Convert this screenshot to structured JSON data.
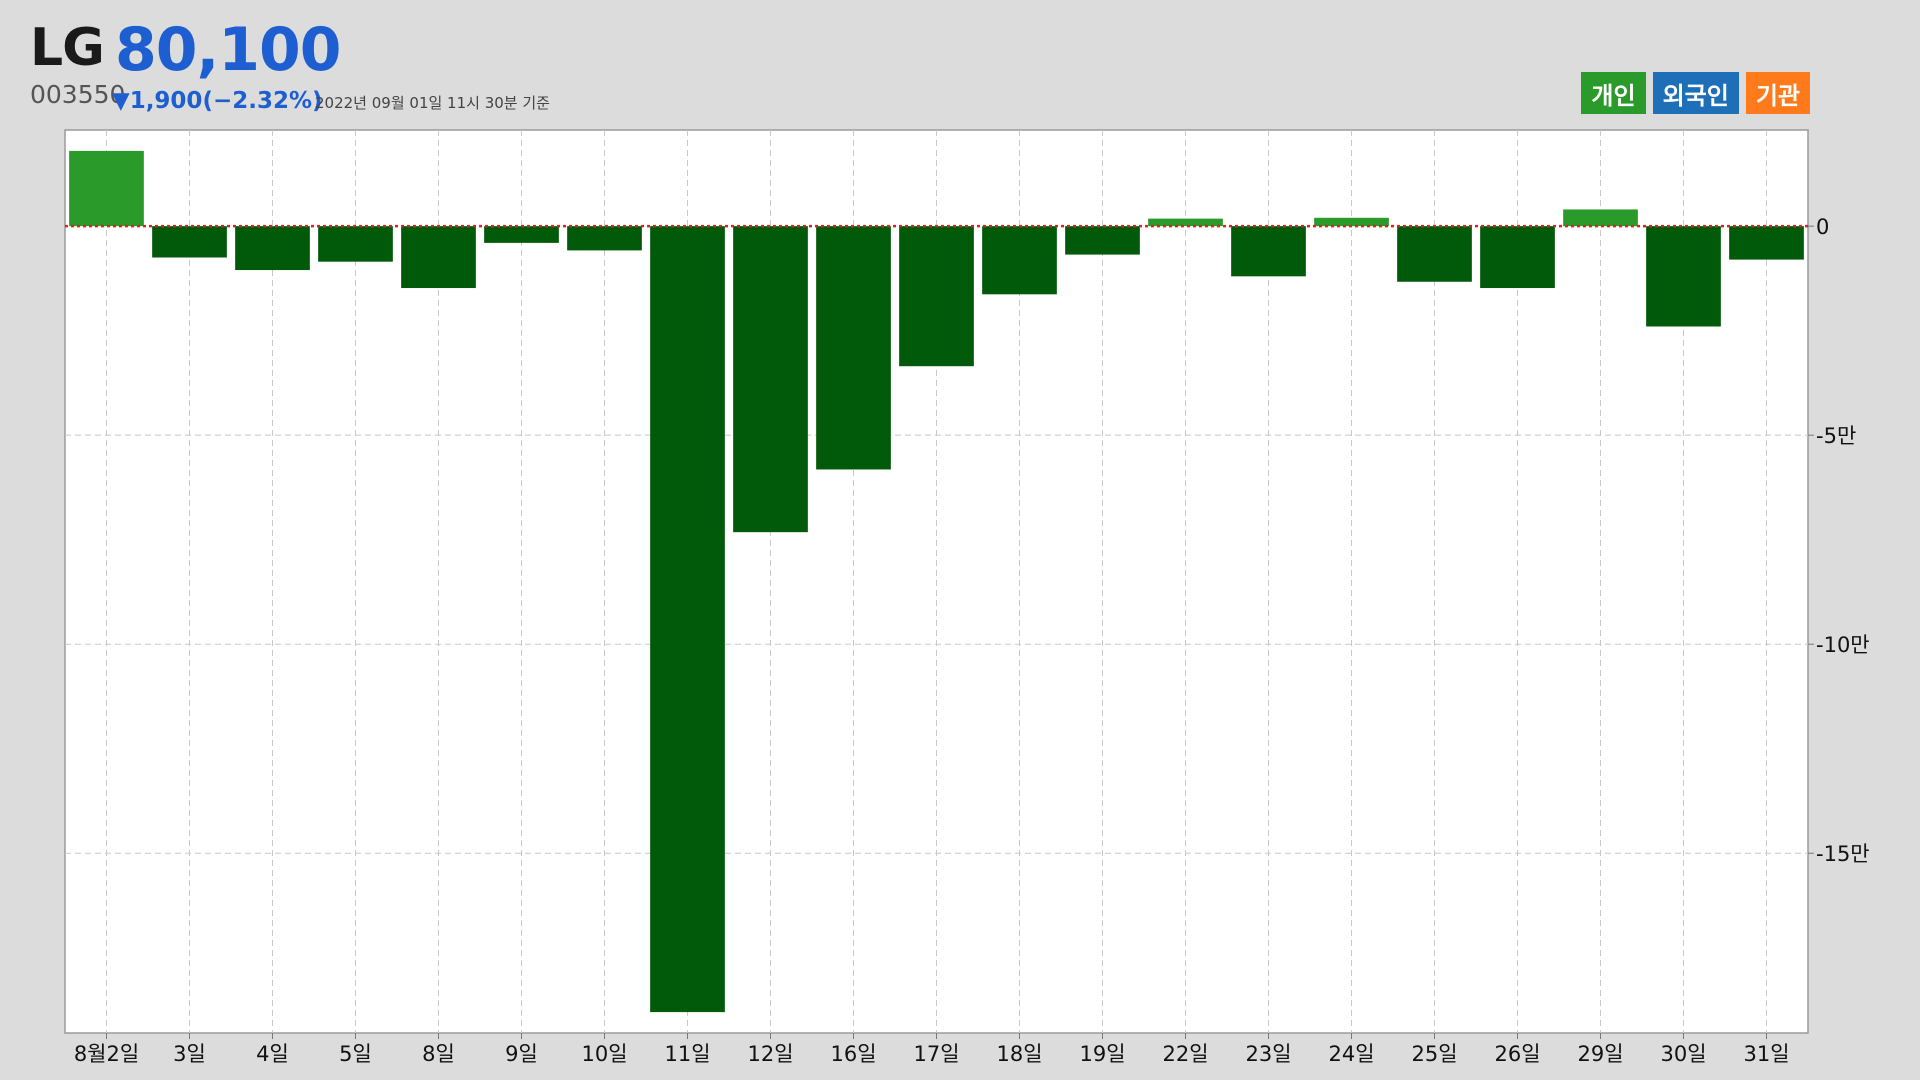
{
  "header": {
    "name": "LG",
    "price": "80,100",
    "code": "003550",
    "change": "▼1,900(−2.32%)",
    "timestamp": "2022년 09월 01일 11시 30분 기준"
  },
  "legend": [
    {
      "label": "개인",
      "color": "#2a9a2a"
    },
    {
      "label": "외국인",
      "color": "#1e6fb8"
    },
    {
      "label": "기관",
      "color": "#ff7a1a"
    }
  ],
  "colors": {
    "positive": "#2a9a2a",
    "negative": "#005a0a",
    "zero_line": "#e02020",
    "grid": "#c8c8c8",
    "plot_bg": "#ffffff",
    "page_bg": "#dcdcdc"
  },
  "chart_data": {
    "type": "bar",
    "categories": [
      "8월2일",
      "3일",
      "4일",
      "5일",
      "8일",
      "9일",
      "10일",
      "11일",
      "12일",
      "16일",
      "17일",
      "18일",
      "19일",
      "22일",
      "23일",
      "24일",
      "25일",
      "26일",
      "29일",
      "30일",
      "31일"
    ],
    "values": [
      18000,
      -7500,
      -10500,
      -8500,
      -14800,
      -4000,
      -5800,
      -188000,
      -73200,
      -58200,
      -33500,
      -16300,
      -6800,
      1800,
      -12000,
      2000,
      -13300,
      -14800,
      4000,
      -24000,
      -8000
    ],
    "ylim": [
      -193000,
      23000
    ],
    "yticks": [
      0,
      -50000,
      -100000,
      -150000
    ],
    "ytick_labels": [
      "0",
      "-5만",
      "-10만",
      "-15만"
    ],
    "xlabel": "",
    "ylabel": "",
    "grid": true,
    "legend_position": "top-right"
  }
}
